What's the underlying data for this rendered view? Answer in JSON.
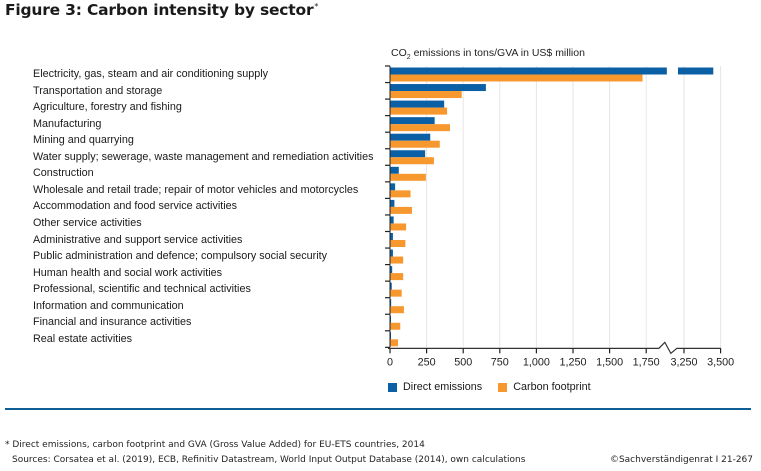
{
  "figure": {
    "title": "Figure 3: Carbon intensity by sector",
    "title_marker": "*",
    "unit_label_prefix": "CO",
    "unit_label_sub": "2",
    "unit_label_suffix": " emissions in tons/GVA in US$ million"
  },
  "footnotes": {
    "note": "* Direct emissions, carbon footprint and GVA (Gross Value Added) for EU-ETS countries, 2014",
    "sources": "Sources: Corsatea et al. (2019), ECB, Refinitiv Datastream, World Input Output Database (2014), own calculations",
    "copyright": "©Sachverständigenrat I 21-267"
  },
  "colors": {
    "direct": "#0b5fa5",
    "footprint": "#f7982f",
    "rule": "#0f5f96"
  },
  "chart_data": {
    "type": "bar",
    "orientation": "horizontal",
    "title": "Carbon intensity by sector",
    "xlabel": "CO2 emissions in tons/GVA in US$ million",
    "ylabel": "",
    "axis_break": [
      1850,
      3150
    ],
    "xlim": [
      0,
      3500
    ],
    "xticks": [
      "0",
      "250",
      "500",
      "750",
      "1,000",
      "1,250",
      "1,500",
      "1,750",
      "3,250",
      "3,500"
    ],
    "xtick_values": [
      0,
      250,
      500,
      750,
      1000,
      1250,
      1500,
      1750,
      3250,
      3500
    ],
    "grid": true,
    "legend_position": "bottom-left",
    "categories": [
      "Electricity, gas, steam and air conditioning supply",
      "Transportation and storage",
      "Agriculture, forestry and fishing",
      "Manufacturing",
      "Mining and quarrying",
      "Water supply; sewerage, waste management and remediation activities",
      "Construction",
      "Wholesale and retail trade; repair of motor vehicles and motorcycles",
      "Accommodation and food service activities",
      "Other service activities",
      "Administrative and support service activities",
      "Public administration and defence; compulsory social security",
      "Human health and social work activities",
      "Professional, scientific and technical activities",
      "Information and communication",
      "Financial and insurance activities",
      "Real estate activities"
    ],
    "series": [
      {
        "name": "Direct emissions",
        "values": [
          3450,
          655,
          370,
          305,
          275,
          240,
          60,
          35,
          30,
          25,
          20,
          20,
          15,
          12,
          8,
          6,
          3
        ]
      },
      {
        "name": "Carbon footprint",
        "values": [
          1725,
          490,
          390,
          410,
          340,
          300,
          245,
          140,
          150,
          110,
          105,
          90,
          90,
          80,
          95,
          70,
          55
        ]
      }
    ]
  }
}
